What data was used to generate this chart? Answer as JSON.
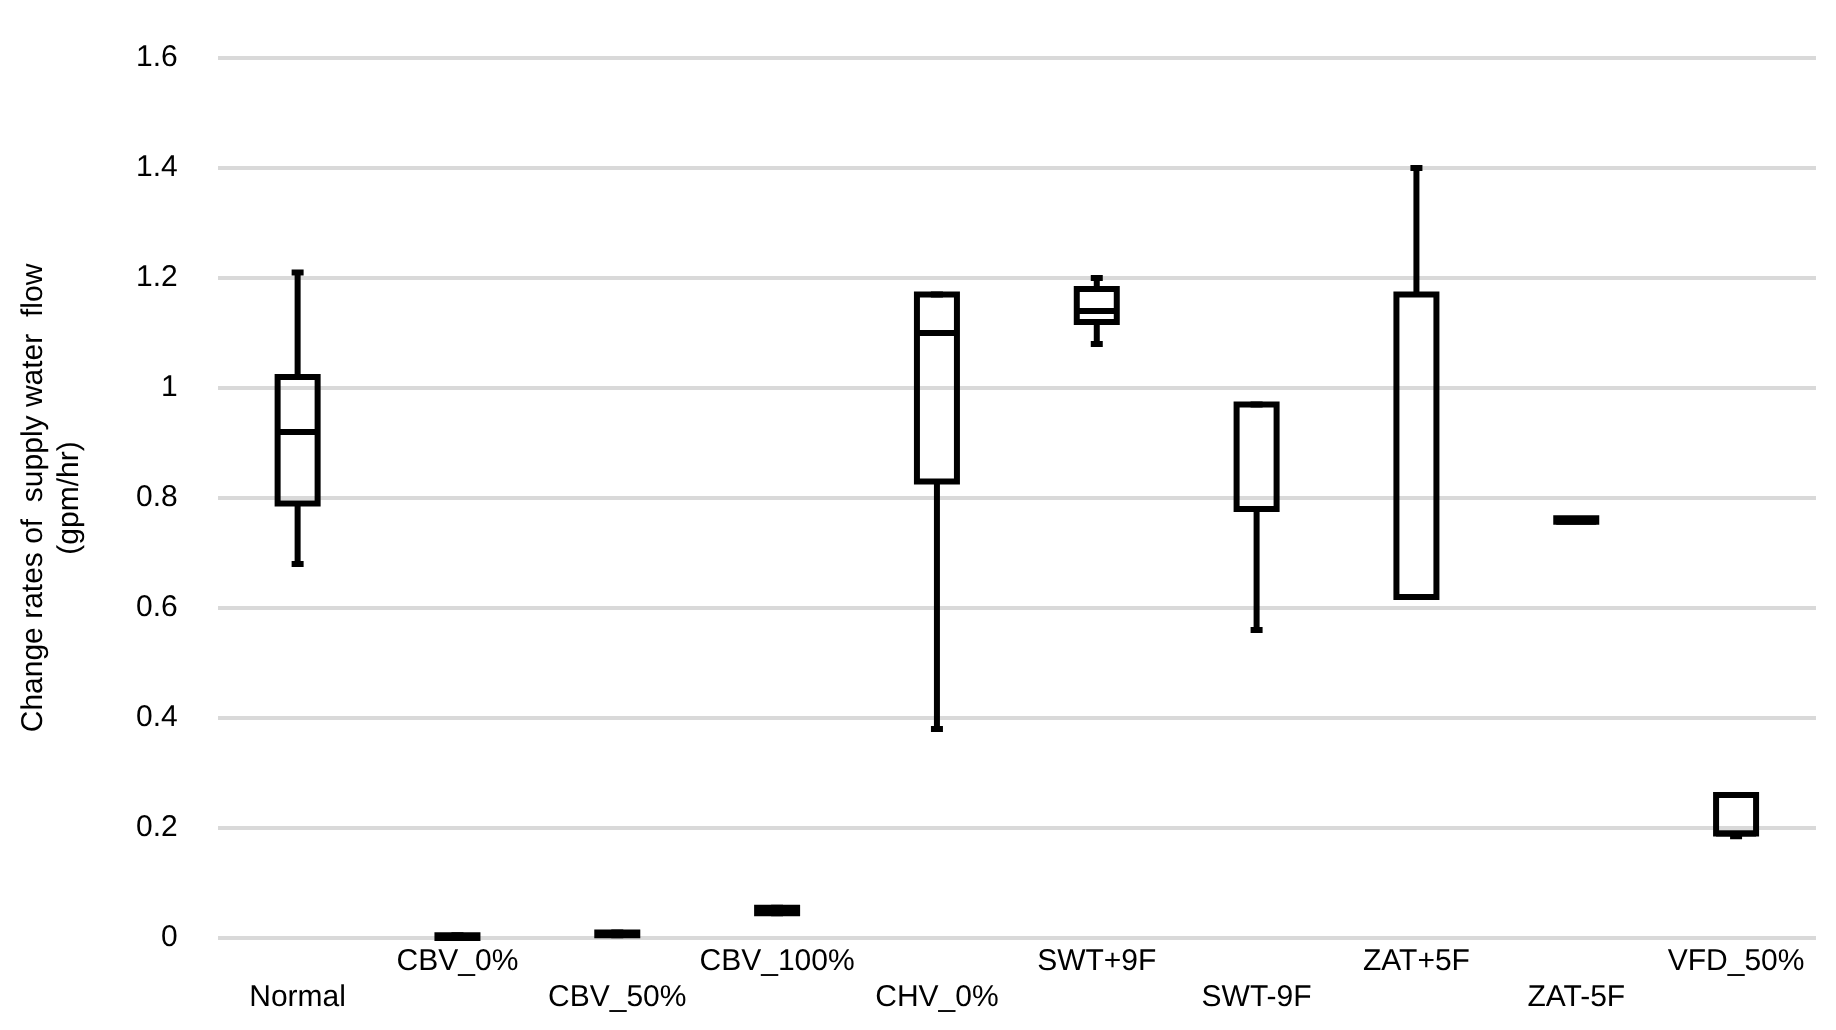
{
  "chart_data": {
    "type": "box",
    "ylabel": "Change rates of  supply water  flow\n(gpm/hr)",
    "categories": [
      "Normal",
      "CBV_0%",
      "CBV_50%",
      "CBV_100%",
      "CHV_0%",
      "SWT+9F",
      "SWT-9F",
      "ZAT+5F",
      "ZAT-5F",
      "VFD_50%"
    ],
    "boxes": [
      {
        "low": 0.68,
        "q1": 0.79,
        "median": 0.92,
        "q3": 1.02,
        "high": 1.21
      },
      {
        "low": 0,
        "q1": 0,
        "median": 0,
        "q3": 0.005,
        "high": 0.005
      },
      {
        "low": 0.005,
        "q1": 0.005,
        "median": 0.008,
        "q3": 0.01,
        "high": 0.01
      },
      {
        "low": 0.045,
        "q1": 0.045,
        "median": 0.05,
        "q3": 0.055,
        "high": 0.055
      },
      {
        "low": 0.38,
        "q1": 0.83,
        "median": 1.1,
        "q3": 1.17,
        "high": 1.17
      },
      {
        "low": 1.08,
        "q1": 1.12,
        "median": 1.14,
        "q3": 1.18,
        "high": 1.2
      },
      {
        "low": 0.56,
        "q1": 0.78,
        "median": 0.78,
        "q3": 0.97,
        "high": 0.97
      },
      {
        "low": 0.62,
        "q1": 0.62,
        "median": 0.62,
        "q3": 1.17,
        "high": 1.4
      },
      {
        "low": 0.76,
        "q1": 0.757,
        "median": 0.757,
        "q3": 0.763,
        "high": 0.76
      },
      {
        "low": 0.185,
        "q1": 0.19,
        "median": 0.19,
        "q3": 0.26,
        "high": 0.26
      }
    ],
    "color": "#000000",
    "ylim": [
      0,
      1.6
    ],
    "yticks": [
      0,
      0.2,
      0.4,
      0.6,
      0.8,
      1,
      1.2,
      1.4,
      1.6
    ],
    "grid": "y"
  }
}
